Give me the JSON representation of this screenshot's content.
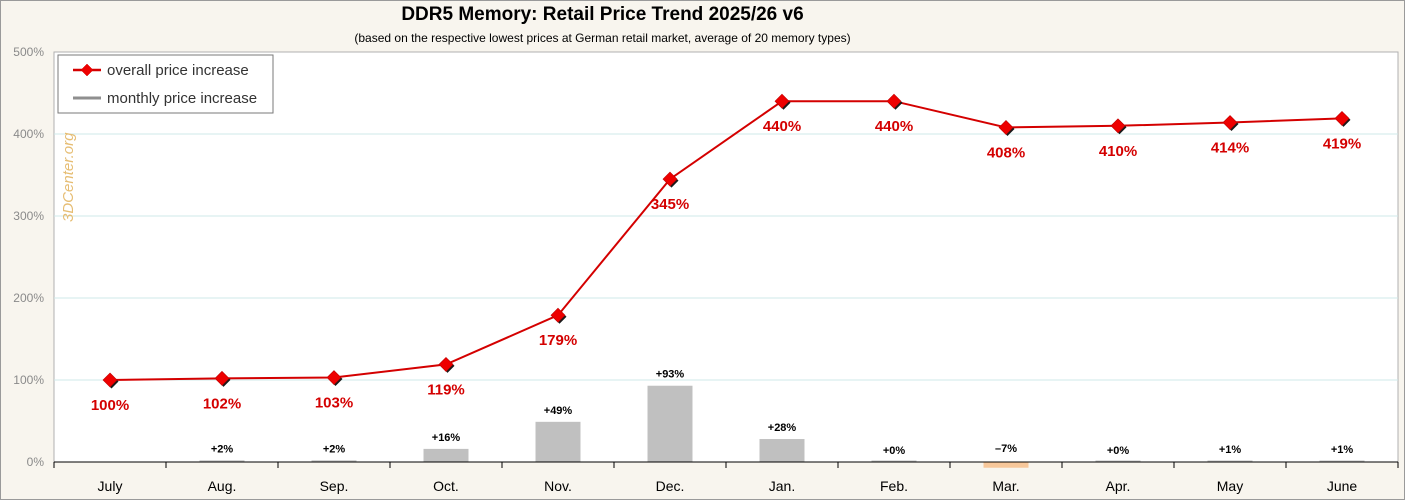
{
  "chart_data": {
    "type": "line",
    "title": "DDR5 Memory: Retail Price Trend 2025/26 v6",
    "subtitle": "(based on the respective lowest prices at German retail market, average of 20 memory types)",
    "categories": [
      "July",
      "Aug.",
      "Sep.",
      "Oct.",
      "Nov.",
      "Dec.",
      "Jan.",
      "Feb.",
      "Mar.",
      "Apr.",
      "May",
      "June"
    ],
    "yticks": [
      "0%",
      "100%",
      "200%",
      "300%",
      "400%",
      "500%"
    ],
    "ylim": [
      0,
      500
    ],
    "grid": true,
    "legend_position": "top-left",
    "watermark": "3DCenter.org",
    "series": [
      {
        "name": "overall price increase",
        "kind": "line",
        "color": "#d40000",
        "values": [
          100,
          102,
          103,
          119,
          179,
          345,
          440,
          440,
          408,
          410,
          414,
          419
        ],
        "labels": [
          "100%",
          "102%",
          "103%",
          "119%",
          "179%",
          "345%",
          "440%",
          "440%",
          "408%",
          "410%",
          "414%",
          "419%"
        ]
      },
      {
        "name": "monthly price increase",
        "kind": "bar",
        "color": "#c0c0c0",
        "negative_color": "#f7c79a",
        "values": [
          null,
          2,
          2,
          16,
          49,
          93,
          28,
          0,
          -7,
          0,
          1,
          1
        ],
        "labels": [
          "",
          "+2%",
          "+2%",
          "+16%",
          "+49%",
          "+93%",
          "+28%",
          "+0%",
          "–7%",
          "+0%",
          "+1%",
          "+1%"
        ]
      }
    ]
  }
}
